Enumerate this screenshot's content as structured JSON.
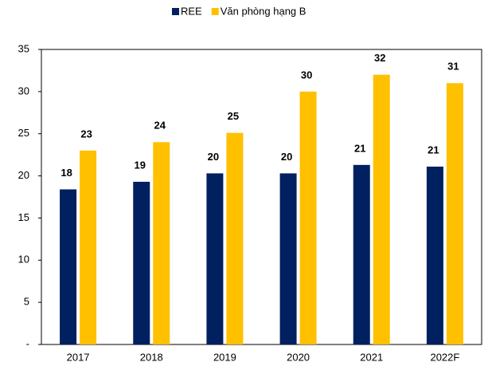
{
  "chart_data": {
    "type": "bar",
    "categories": [
      "2017",
      "2018",
      "2019",
      "2020",
      "2021",
      "2022F"
    ],
    "series": [
      {
        "name": "REE",
        "color": "#002060",
        "values": [
          18.4,
          19.3,
          20.3,
          20.3,
          21.3,
          21.1
        ],
        "value_labels": [
          "18",
          "19",
          "20",
          "20",
          "21",
          "21"
        ]
      },
      {
        "name": "Văn phòng hạng B",
        "color": "#ffc000",
        "values": [
          23,
          24,
          25.1,
          30,
          32,
          31
        ],
        "value_labels": [
          "23",
          "24",
          "25",
          "30",
          "32",
          "31"
        ]
      }
    ],
    "ylim": [
      0,
      35
    ],
    "yticks": [
      {
        "value": 0,
        "label": "-"
      },
      5,
      10,
      15,
      20,
      25,
      30,
      35
    ],
    "legend": "top",
    "grid": false
  }
}
